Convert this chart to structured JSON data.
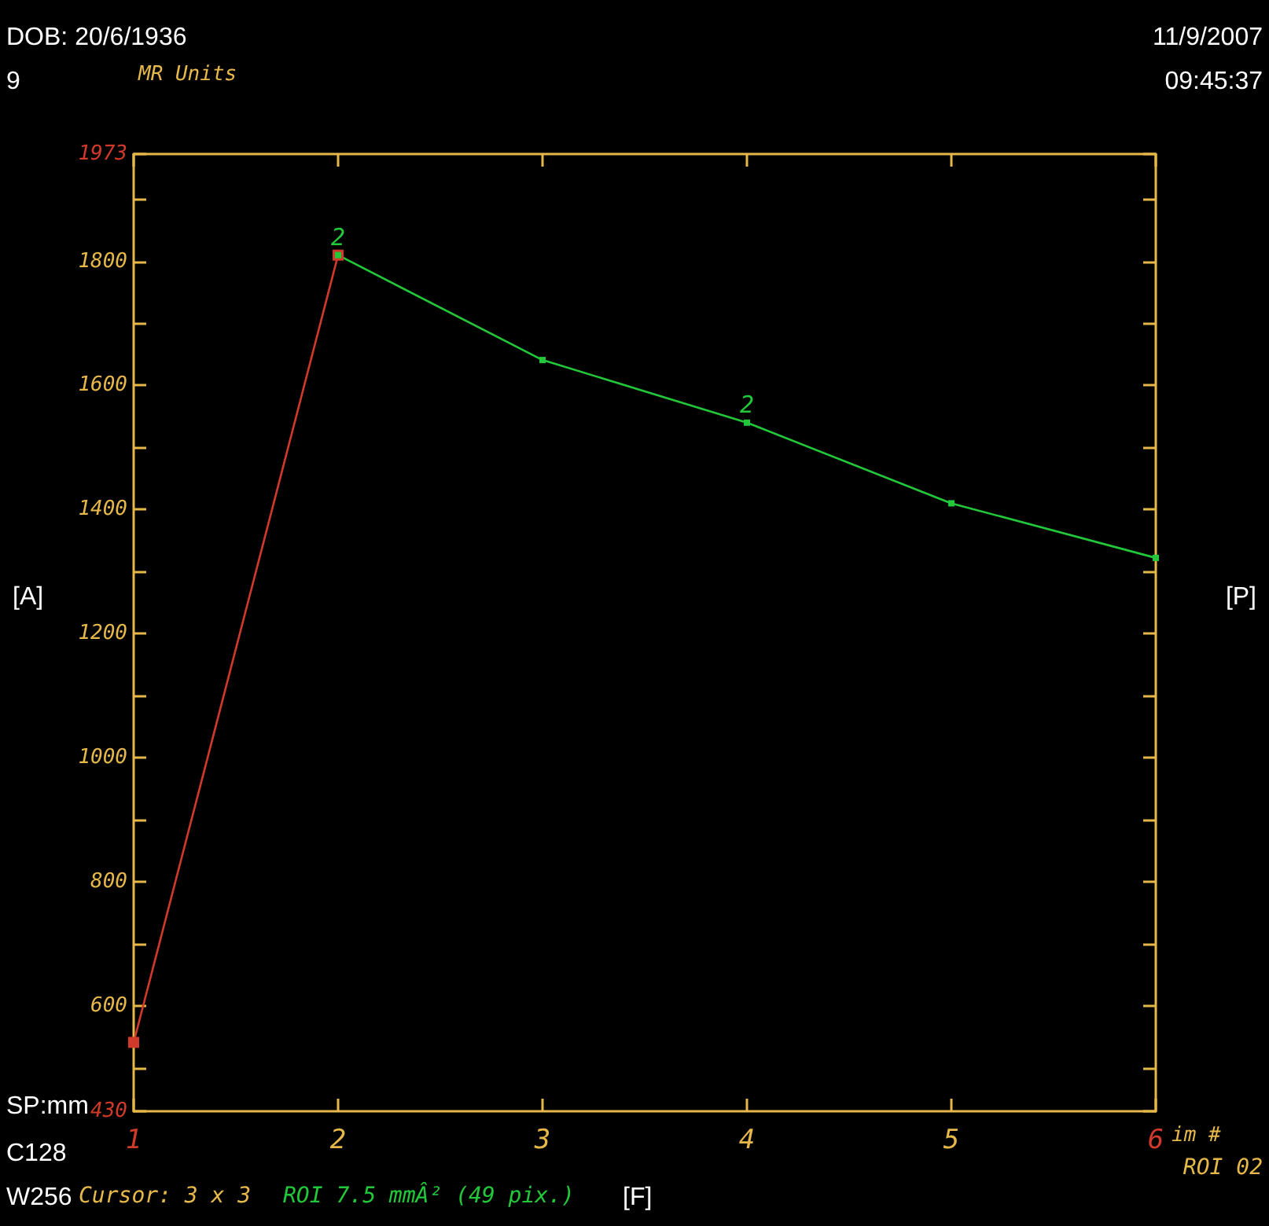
{
  "chart_data": {
    "type": "line",
    "xlabel": "im #",
    "ylabel": "MR Units",
    "x": [
      1,
      2,
      3,
      4,
      5,
      6
    ],
    "series": [
      {
        "color": "#d03a2a",
        "values": [
          541,
          1810,
          null,
          null,
          null,
          null
        ]
      },
      {
        "color": "#22c83a",
        "values": [
          null,
          1810,
          1641,
          1540,
          1410,
          1322
        ]
      }
    ],
    "xlim": [
      1,
      6
    ],
    "xticks": [
      1,
      2,
      3,
      4,
      5,
      6
    ],
    "ylim": [
      430,
      1973
    ],
    "yticks": [
      {
        "value": 430,
        "label": "430"
      },
      {
        "value": 500,
        "label": null
      },
      600,
      {
        "value": 700,
        "label": null
      },
      800,
      {
        "value": 900,
        "label": null
      },
      1000,
      {
        "value": 1100,
        "label": null
      },
      1200,
      {
        "value": 1300,
        "label": null
      },
      1400,
      {
        "value": 1500,
        "label": null
      },
      1600,
      {
        "value": 1700,
        "label": null
      },
      1800,
      {
        "value": 1900,
        "label": null
      },
      {
        "value": 1973,
        "label": "1973"
      }
    ],
    "grid": false,
    "marker": "square",
    "line_style": "solid",
    "annotations": [
      {
        "text": "2",
        "x": 2,
        "y": 1810
      },
      {
        "text": "2",
        "x": 4,
        "y": 1540
      },
      "DOB: 20/6/1936",
      "9",
      "11/9/2007",
      "09:45:37",
      "[A]",
      "[P]",
      "SP:mm",
      "C128",
      "W256",
      "Cursor: 3 x 3",
      "ROI 7.5 mmÂ² (49 pix.)",
      "[F]",
      "ROI 02"
    ]
  }
}
